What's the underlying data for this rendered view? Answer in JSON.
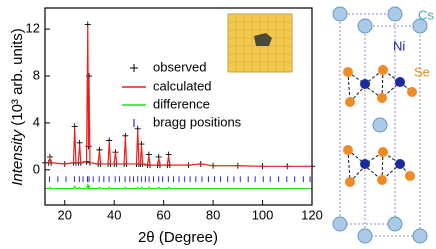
{
  "chart_data": {
    "type": "rietveld",
    "ylabel_parts": [
      "Intensity",
      "(10³ arb. units)"
    ],
    "xlabel": "2θ (Degree)",
    "xlim": [
      12,
      120
    ],
    "ylim": [
      -3,
      13.8
    ],
    "xticks": [
      20,
      40,
      60,
      80,
      100,
      120
    ],
    "yticks": [
      0,
      4,
      8,
      12
    ],
    "x": [
      12,
      13.5,
      14,
      14.5,
      20,
      23.5,
      24,
      24.5,
      25.5,
      26,
      26.5,
      28.8,
      29.3,
      29.6,
      29.8,
      30.2,
      33.5,
      34,
      34.5,
      37.5,
      38,
      38.5,
      40,
      40.5,
      41,
      44,
      44.5,
      45,
      49,
      49.5,
      50,
      50.6,
      51,
      51.5,
      53.5,
      54,
      54.5,
      57.5,
      58,
      58.5,
      61.5,
      62,
      62.5,
      70,
      75,
      80,
      90,
      100,
      110,
      120
    ],
    "series": [
      {
        "name": "observed",
        "color": "#000000",
        "marker": "plus",
        "values": [
          0.6,
          0.6,
          1.1,
          0.6,
          0.5,
          0.6,
          3.7,
          0.6,
          0.6,
          2.3,
          0.6,
          0.7,
          12.4,
          2.0,
          8.0,
          0.6,
          0.5,
          1.7,
          0.5,
          0.5,
          2.5,
          0.5,
          0.5,
          1.5,
          0.5,
          0.5,
          2.9,
          0.5,
          0.5,
          3.5,
          0.5,
          0.5,
          2.2,
          0.5,
          0.4,
          1.3,
          0.4,
          0.4,
          1.1,
          0.4,
          0.4,
          1.3,
          0.4,
          0.4,
          0.5,
          0.35,
          0.35,
          0.3,
          0.3,
          0.3
        ]
      },
      {
        "name": "calculated",
        "color": "#e8201c",
        "marker": "line",
        "values": [
          0.6,
          0.6,
          1.0,
          0.6,
          0.5,
          0.6,
          3.5,
          0.6,
          0.6,
          2.2,
          0.6,
          0.7,
          12.2,
          2.0,
          7.8,
          0.6,
          0.5,
          1.6,
          0.5,
          0.5,
          2.4,
          0.5,
          0.5,
          1.5,
          0.5,
          0.5,
          2.8,
          0.5,
          0.5,
          3.4,
          0.5,
          0.5,
          2.1,
          0.5,
          0.4,
          1.2,
          0.4,
          0.4,
          1.0,
          0.4,
          0.4,
          1.2,
          0.4,
          0.4,
          0.5,
          0.35,
          0.35,
          0.3,
          0.3,
          0.3
        ]
      },
      {
        "name": "difference",
        "color": "#22dd22",
        "marker": "line",
        "values": [
          -1.6,
          -1.6,
          -1.5,
          -1.6,
          -1.6,
          -1.6,
          -1.4,
          -1.6,
          -1.6,
          -1.5,
          -1.6,
          -1.6,
          -1.3,
          -1.6,
          -1.4,
          -1.6,
          -1.6,
          -1.5,
          -1.6,
          -1.6,
          -1.5,
          -1.6,
          -1.6,
          -1.6,
          -1.6,
          -1.6,
          -1.5,
          -1.6,
          -1.6,
          -1.5,
          -1.6,
          -1.6,
          -1.5,
          -1.6,
          -1.6,
          -1.5,
          -1.6,
          -1.6,
          -1.5,
          -1.6,
          -1.6,
          -1.5,
          -1.6,
          -1.6,
          -1.6,
          -1.6,
          -1.6,
          -1.6,
          -1.6,
          -1.6
        ]
      }
    ],
    "bragg_positions": {
      "name": "bragg positions",
      "color": "#2a2ad0",
      "x": [
        13.8,
        17.2,
        20.5,
        23.9,
        25.9,
        27.4,
        29.2,
        29.8,
        31.5,
        33.9,
        35.8,
        37.9,
        40.4,
        42.1,
        44.4,
        46.3,
        47.8,
        49.5,
        51.0,
        52.6,
        54.1,
        55.9,
        58.0,
        59.6,
        61.9,
        64.0,
        66.2,
        68.5,
        70.7,
        73.0,
        75.5,
        78.1,
        80.6,
        83.0,
        85.9,
        88.4,
        91.0,
        94.2,
        97.0,
        100.3,
        103.1,
        106.5,
        109.8,
        113.0,
        116.5,
        119.2
      ]
    }
  },
  "structure": {
    "labels": {
      "cs": "Cs",
      "ni": "Ni",
      "se": "Se"
    }
  }
}
